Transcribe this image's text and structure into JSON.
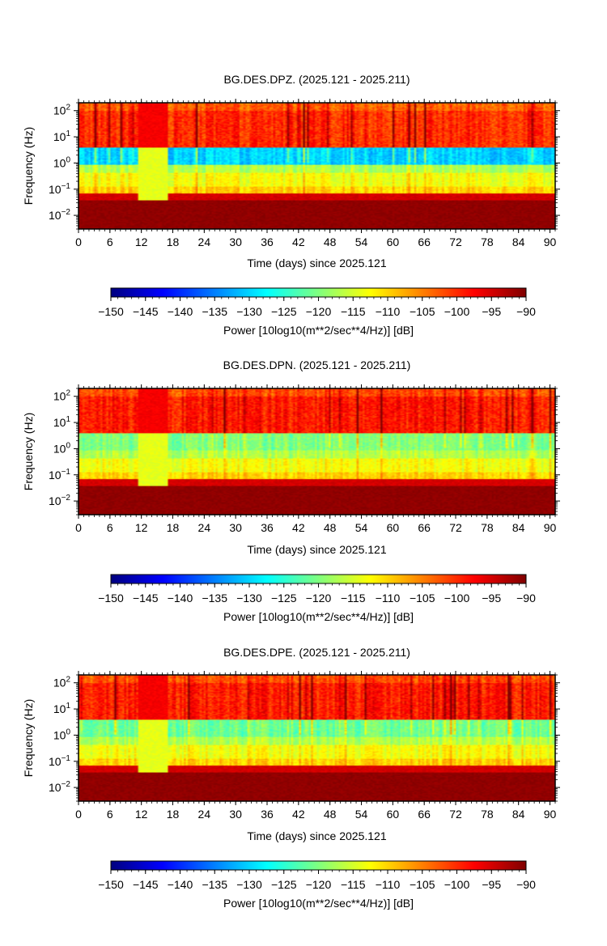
{
  "chart_data": [
    {
      "type": "heatmap",
      "title": "BG.DES.DPZ. (2025.121 - 2025.211)",
      "xlabel": "Time (days) since 2025.121",
      "ylabel": "Frequency (Hz)",
      "xlim": [
        0,
        91
      ],
      "ylim": [
        0.003,
        200
      ],
      "yscale": "log",
      "x_ticks": [
        "0",
        "6",
        "12",
        "18",
        "24",
        "30",
        "36",
        "42",
        "48",
        "54",
        "60",
        "66",
        "72",
        "78",
        "84",
        "90"
      ],
      "y_ticks": [
        "10^2",
        "10^1",
        "10^0",
        "10^-1",
        "10^-2"
      ],
      "quiet_band_hz": [
        0.9,
        4.0
      ],
      "quiet_band_level_db": -130,
      "microseism_band_hz": [
        0.12,
        0.4
      ],
      "microseism_level_db": -113,
      "low_freq_level_db": -91,
      "high_freq_level_db": -100,
      "gap_days": [
        11.0,
        17.0
      ],
      "colorbar": {
        "label": "Power [10log10(m**2/sec**4/Hz)] [dB]",
        "range": [
          -150,
          -90
        ],
        "ticks": [
          "−150",
          "−145",
          "−140",
          "−135",
          "−130",
          "−125",
          "−120",
          "−115",
          "−110",
          "−105",
          "−100",
          "−95",
          "−90"
        ],
        "colormap": [
          "#00007f",
          "#0000ff",
          "#007fff",
          "#00ffff",
          "#7fff7f",
          "#ffff00",
          "#ff7f00",
          "#ff0000",
          "#7f0000"
        ]
      }
    },
    {
      "type": "heatmap",
      "title": "BG.DES.DPN. (2025.121 - 2025.211)",
      "xlabel": "Time (days) since 2025.121",
      "ylabel": "Frequency (Hz)",
      "xlim": [
        0,
        91
      ],
      "ylim": [
        0.003,
        200
      ],
      "yscale": "log",
      "x_ticks": [
        "0",
        "6",
        "12",
        "18",
        "24",
        "30",
        "36",
        "42",
        "48",
        "54",
        "60",
        "66",
        "72",
        "78",
        "84",
        "90"
      ],
      "y_ticks": [
        "10^2",
        "10^1",
        "10^0",
        "10^-1",
        "10^-2"
      ],
      "quiet_band_hz": [
        0.9,
        4.0
      ],
      "quiet_band_level_db": -120,
      "microseism_band_hz": [
        0.12,
        0.4
      ],
      "microseism_level_db": -113,
      "low_freq_level_db": -91,
      "high_freq_level_db": -99,
      "gap_days": [
        11.0,
        17.0
      ],
      "colorbar": {
        "label": "Power [10log10(m**2/sec**4/Hz)] [dB]",
        "range": [
          -150,
          -90
        ],
        "ticks": [
          "−150",
          "−145",
          "−140",
          "−135",
          "−130",
          "−125",
          "−120",
          "−115",
          "−110",
          "−105",
          "−100",
          "−95",
          "−90"
        ],
        "colormap": [
          "#00007f",
          "#0000ff",
          "#007fff",
          "#00ffff",
          "#7fff7f",
          "#ffff00",
          "#ff7f00",
          "#ff0000",
          "#7f0000"
        ]
      }
    },
    {
      "type": "heatmap",
      "title": "BG.DES.DPE. (2025.121 - 2025.211)",
      "xlabel": "Time (days) since 2025.121",
      "ylabel": "Frequency (Hz)",
      "xlim": [
        0,
        91
      ],
      "ylim": [
        0.003,
        200
      ],
      "yscale": "log",
      "x_ticks": [
        "0",
        "6",
        "12",
        "18",
        "24",
        "30",
        "36",
        "42",
        "48",
        "54",
        "60",
        "66",
        "72",
        "78",
        "84",
        "90"
      ],
      "y_ticks": [
        "10^2",
        "10^1",
        "10^0",
        "10^-1",
        "10^-2"
      ],
      "quiet_band_hz": [
        0.9,
        4.0
      ],
      "quiet_band_level_db": -121,
      "microseism_band_hz": [
        0.12,
        0.4
      ],
      "microseism_level_db": -113,
      "low_freq_level_db": -91,
      "high_freq_level_db": -99,
      "gap_days": [
        11.0,
        17.0
      ],
      "colorbar": {
        "label": "Power [10log10(m**2/sec**4/Hz)] [dB]",
        "range": [
          -150,
          -90
        ],
        "ticks": [
          "−150",
          "−145",
          "−140",
          "−135",
          "−130",
          "−125",
          "−120",
          "−115",
          "−110",
          "−105",
          "−100",
          "−95",
          "−90"
        ],
        "colormap": [
          "#00007f",
          "#0000ff",
          "#007fff",
          "#00ffff",
          "#7fff7f",
          "#ffff00",
          "#ff7f00",
          "#ff0000",
          "#7f0000"
        ]
      }
    }
  ]
}
